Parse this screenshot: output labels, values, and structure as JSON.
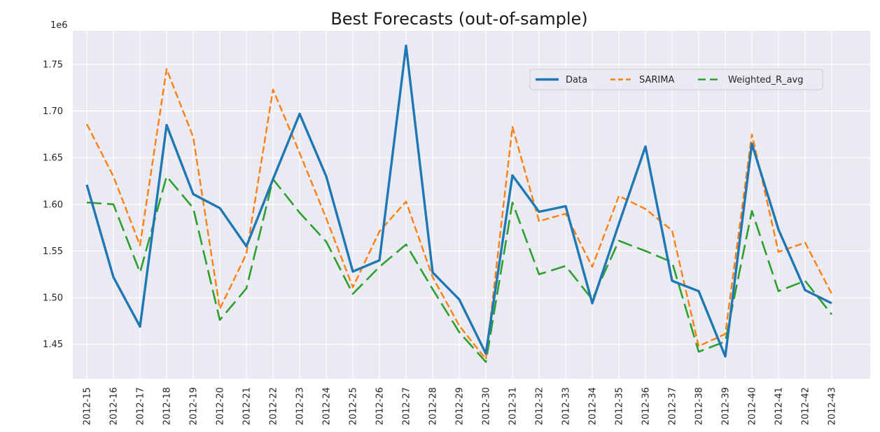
{
  "chart_data": {
    "type": "line",
    "title": "Best Forecasts (out-of-sample)",
    "y_offset_label": "1e6",
    "xlabel": "",
    "ylabel": "",
    "categories": [
      "2012-15",
      "2012-16",
      "2012-17",
      "2012-18",
      "2012-19",
      "2012-20",
      "2012-21",
      "2012-22",
      "2012-23",
      "2012-24",
      "2012-25",
      "2012-26",
      "2012-27",
      "2012-28",
      "2012-29",
      "2012-30",
      "2012-31",
      "2012-32",
      "2012-33",
      "2012-34",
      "2012-35",
      "2012-36",
      "2012-37",
      "2012-38",
      "2012-39",
      "2012-40",
      "2012-41",
      "2012-42",
      "2012-43"
    ],
    "yticks": [
      1.45,
      1.5,
      1.55,
      1.6,
      1.65,
      1.7,
      1.75
    ],
    "ytick_labels": [
      "1.45",
      "1.50",
      "1.55",
      "1.60",
      "1.65",
      "1.70",
      "1.75"
    ],
    "ylim": [
      1.413,
      1.786
    ],
    "grid": true,
    "legend_position": "top-right",
    "series": [
      {
        "name": "Data",
        "color": "#1f77b4",
        "style": "solid",
        "values": [
          1.621,
          1.522,
          1.469,
          1.685,
          1.611,
          1.596,
          1.555,
          1.627,
          1.697,
          1.63,
          1.528,
          1.54,
          1.77,
          1.527,
          1.498,
          1.44,
          1.631,
          1.592,
          1.598,
          1.494,
          1.579,
          1.662,
          1.518,
          1.507,
          1.437,
          1.665,
          1.573,
          1.508,
          1.494
        ]
      },
      {
        "name": "SARIMA",
        "color": "#ff7f0e",
        "style": "dashed",
        "values": [
          1.686,
          1.63,
          1.556,
          1.745,
          1.672,
          1.488,
          1.547,
          1.723,
          1.655,
          1.585,
          1.511,
          1.571,
          1.603,
          1.522,
          1.47,
          1.434,
          1.683,
          1.582,
          1.59,
          1.533,
          1.609,
          1.595,
          1.572,
          1.448,
          1.461,
          1.675,
          1.549,
          1.559,
          1.504
        ]
      },
      {
        "name": "Weighted_R_avg",
        "color": "#2ca02c",
        "style": "longdash",
        "values": [
          1.602,
          1.6,
          1.527,
          1.63,
          1.596,
          1.476,
          1.51,
          1.627,
          1.591,
          1.56,
          1.504,
          1.533,
          1.557,
          1.509,
          1.463,
          1.431,
          1.602,
          1.525,
          1.534,
          1.498,
          1.561,
          1.55,
          1.538,
          1.442,
          1.453,
          1.593,
          1.507,
          1.518,
          1.482
        ]
      }
    ]
  }
}
